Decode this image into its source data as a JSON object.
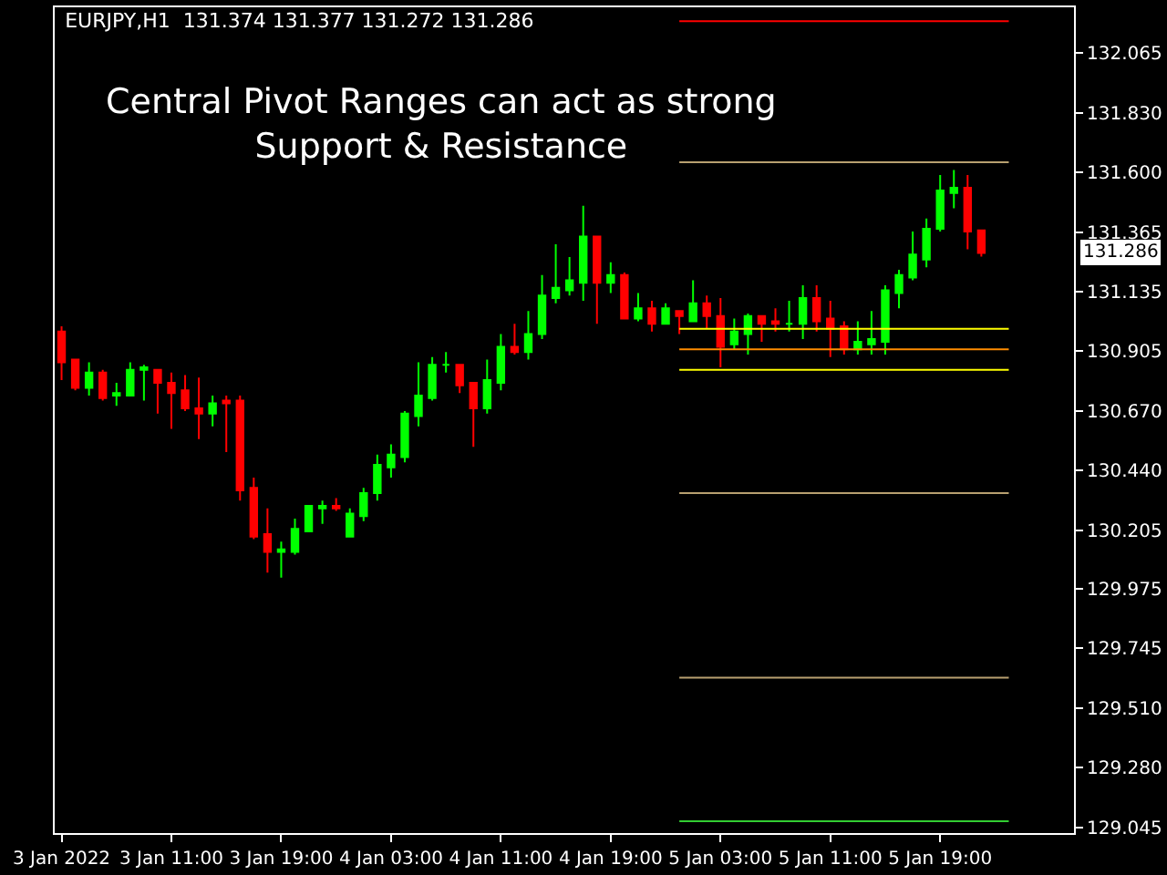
{
  "chart_data": {
    "type": "candlestick",
    "title": "EURJPY,H1  131.374 131.377 131.272 131.286",
    "annotations": [
      "Central Pivot Ranges can act as strong\nSupport & Resistance",
      "131.286"
    ],
    "x": [
      "2022-01-03T03:00",
      "2022-01-03T04:00",
      "2022-01-03T05:00",
      "2022-01-03T06:00",
      "2022-01-03T07:00",
      "2022-01-03T08:00",
      "2022-01-03T09:00",
      "2022-01-03T10:00",
      "2022-01-03T11:00",
      "2022-01-03T12:00",
      "2022-01-03T13:00",
      "2022-01-03T14:00",
      "2022-01-03T15:00",
      "2022-01-03T16:00",
      "2022-01-03T17:00",
      "2022-01-03T18:00",
      "2022-01-03T19:00",
      "2022-01-03T20:00",
      "2022-01-03T21:00",
      "2022-01-03T22:00",
      "2022-01-03T23:00",
      "2022-01-04T00:00",
      "2022-01-04T01:00",
      "2022-01-04T02:00",
      "2022-01-04T03:00",
      "2022-01-04T04:00",
      "2022-01-04T05:00",
      "2022-01-04T06:00",
      "2022-01-04T07:00",
      "2022-01-04T08:00",
      "2022-01-04T09:00",
      "2022-01-04T10:00",
      "2022-01-04T11:00",
      "2022-01-04T12:00",
      "2022-01-04T13:00",
      "2022-01-04T14:00",
      "2022-01-04T15:00",
      "2022-01-04T16:00",
      "2022-01-04T17:00",
      "2022-01-04T18:00",
      "2022-01-04T19:00",
      "2022-01-04T20:00",
      "2022-01-04T21:00",
      "2022-01-04T22:00",
      "2022-01-04T23:00",
      "2022-01-05T00:00",
      "2022-01-05T01:00",
      "2022-01-05T02:00",
      "2022-01-05T03:00",
      "2022-01-05T04:00",
      "2022-01-05T05:00",
      "2022-01-05T06:00",
      "2022-01-05T07:00",
      "2022-01-05T08:00",
      "2022-01-05T09:00",
      "2022-01-05T10:00",
      "2022-01-05T11:00",
      "2022-01-05T12:00",
      "2022-01-05T13:00",
      "2022-01-05T14:00",
      "2022-01-05T15:00",
      "2022-01-05T16:00",
      "2022-01-05T17:00",
      "2022-01-05T18:00",
      "2022-01-05T19:00",
      "2022-01-05T20:00",
      "2022-01-05T21:00",
      "2022-01-05T22:00"
    ],
    "ohlc": [
      [
        130.98,
        131.0,
        130.79,
        130.86
      ],
      [
        130.87,
        130.87,
        130.75,
        130.76
      ],
      [
        130.76,
        130.86,
        130.73,
        130.82
      ],
      [
        130.82,
        130.83,
        130.71,
        130.72
      ],
      [
        130.73,
        130.78,
        130.69,
        130.74
      ],
      [
        130.73,
        130.86,
        130.73,
        130.83
      ],
      [
        130.83,
        130.85,
        130.71,
        130.84
      ],
      [
        130.83,
        130.83,
        130.66,
        130.78
      ],
      [
        130.78,
        130.82,
        130.6,
        130.74
      ],
      [
        130.75,
        130.81,
        130.67,
        130.68
      ],
      [
        130.68,
        130.8,
        130.56,
        130.66
      ],
      [
        130.66,
        130.73,
        130.61,
        130.7
      ],
      [
        130.71,
        130.73,
        130.51,
        130.7
      ],
      [
        130.71,
        130.73,
        130.32,
        130.36
      ],
      [
        130.37,
        130.41,
        130.17,
        130.18
      ],
      [
        130.19,
        130.29,
        130.04,
        130.12
      ],
      [
        130.12,
        130.16,
        130.02,
        130.13
      ],
      [
        130.12,
        130.25,
        130.11,
        130.21
      ],
      [
        130.2,
        130.3,
        130.2,
        130.3
      ],
      [
        130.29,
        130.32,
        130.23,
        130.3
      ],
      [
        130.3,
        130.33,
        130.28,
        130.29
      ],
      [
        130.18,
        130.29,
        130.18,
        130.27
      ],
      [
        130.26,
        130.37,
        130.24,
        130.35
      ],
      [
        130.35,
        130.5,
        130.32,
        130.46
      ],
      [
        130.45,
        130.54,
        130.41,
        130.5
      ],
      [
        130.49,
        130.67,
        130.47,
        130.66
      ],
      [
        130.65,
        130.86,
        130.61,
        130.73
      ],
      [
        130.72,
        130.88,
        130.71,
        130.85
      ],
      [
        130.85,
        130.9,
        130.82,
        130.85
      ],
      [
        130.85,
        130.85,
        130.74,
        130.77
      ],
      [
        130.78,
        130.78,
        130.53,
        130.68
      ],
      [
        130.68,
        130.87,
        130.66,
        130.79
      ],
      [
        130.78,
        130.97,
        130.75,
        130.92
      ],
      [
        130.92,
        131.01,
        130.89,
        130.9
      ],
      [
        130.9,
        131.06,
        130.87,
        130.97
      ],
      [
        130.97,
        131.2,
        130.95,
        131.12
      ],
      [
        131.11,
        131.32,
        131.09,
        131.15
      ],
      [
        131.14,
        131.27,
        131.12,
        131.18
      ],
      [
        131.17,
        131.47,
        131.1,
        131.35
      ],
      [
        131.35,
        131.35,
        131.01,
        131.17
      ],
      [
        131.17,
        131.25,
        131.13,
        131.2
      ],
      [
        131.2,
        131.21,
        131.03,
        131.03
      ],
      [
        131.03,
        131.13,
        131.02,
        131.07
      ],
      [
        131.07,
        131.1,
        130.98,
        131.01
      ],
      [
        131.01,
        131.09,
        131.01,
        131.07
      ],
      [
        131.06,
        131.06,
        130.97,
        131.04
      ],
      [
        131.02,
        131.18,
        131.02,
        131.09
      ],
      [
        131.09,
        131.12,
        130.99,
        131.04
      ],
      [
        131.04,
        131.11,
        130.84,
        130.92
      ],
      [
        130.93,
        131.03,
        130.91,
        130.98
      ],
      [
        130.97,
        131.05,
        130.89,
        131.04
      ],
      [
        131.04,
        131.04,
        130.94,
        131.01
      ],
      [
        131.02,
        131.07,
        130.98,
        131.01
      ],
      [
        131.01,
        131.1,
        130.98,
        131.01
      ],
      [
        131.01,
        131.16,
        130.95,
        131.11
      ],
      [
        131.11,
        131.16,
        130.98,
        131.02
      ],
      [
        131.03,
        131.1,
        130.88,
        130.99
      ],
      [
        131.0,
        131.02,
        130.89,
        130.91
      ],
      [
        130.91,
        131.02,
        130.89,
        130.94
      ],
      [
        130.93,
        131.06,
        130.89,
        130.95
      ],
      [
        130.94,
        131.16,
        130.89,
        131.14
      ],
      [
        131.13,
        131.22,
        131.07,
        131.2
      ],
      [
        131.19,
        131.37,
        131.18,
        131.28
      ],
      [
        131.26,
        131.42,
        131.23,
        131.38
      ],
      [
        131.38,
        131.59,
        131.37,
        131.53
      ],
      [
        131.52,
        131.61,
        131.46,
        131.54
      ],
      [
        131.54,
        131.59,
        131.3,
        131.37
      ],
      [
        131.374,
        131.377,
        131.272,
        131.286
      ]
    ],
    "colors": [
      "#ff0000",
      "#ff0000",
      "#00ff00",
      "#ff0000",
      "#00ff00",
      "#00ff00",
      "#00ff00",
      "#ff0000",
      "#ff0000",
      "#ff0000",
      "#ff0000",
      "#00ff00",
      "#ff0000",
      "#ff0000",
      "#ff0000",
      "#ff0000",
      "#00ff00",
      "#00ff00",
      "#00ff00",
      "#00ff00",
      "#ff0000",
      "#00ff00",
      "#00ff00",
      "#00ff00",
      "#00ff00",
      "#00ff00",
      "#00ff00",
      "#00ff00",
      "#00ff00",
      "#ff0000",
      "#ff0000",
      "#00ff00",
      "#00ff00",
      "#ff0000",
      "#00ff00",
      "#00ff00",
      "#00ff00",
      "#00ff00",
      "#00ff00",
      "#ff0000",
      "#00ff00",
      "#ff0000",
      "#00ff00",
      "#ff0000",
      "#00ff00",
      "#ff0000",
      "#00ff00",
      "#ff0000",
      "#ff0000",
      "#00ff00",
      "#00ff00",
      "#ff0000",
      "#ff0000",
      "#00ff00",
      "#00ff00",
      "#ff0000",
      "#ff0000",
      "#ff0000",
      "#00ff00",
      "#00ff00",
      "#00ff00",
      "#00ff00",
      "#00ff00",
      "#00ff00",
      "#00ff00",
      "#00ff00",
      "#ff0000",
      "#ff0000"
    ],
    "series": [
      {
        "type": "line",
        "color": "#ff0000",
        "x": [
          "2022-01-05T00:00",
          "2022-01-06T00:00"
        ],
        "values": [
          132.19,
          132.19
        ]
      },
      {
        "type": "line",
        "color": "#b8a070",
        "x": [
          "2022-01-05T00:00",
          "2022-01-06T00:00"
        ],
        "values": [
          131.64,
          131.64
        ]
      },
      {
        "type": "line",
        "color": "#ffff00",
        "x": [
          "2022-01-05T00:00",
          "2022-01-06T00:00"
        ],
        "values": [
          130.99,
          130.99
        ]
      },
      {
        "type": "line",
        "color": "#ff8c00",
        "x": [
          "2022-01-05T00:00",
          "2022-01-06T00:00"
        ],
        "values": [
          130.91,
          130.91
        ]
      },
      {
        "type": "line",
        "color": "#ffff00",
        "x": [
          "2022-01-05T00:00",
          "2022-01-06T00:00"
        ],
        "values": [
          130.83,
          130.83
        ]
      },
      {
        "type": "line",
        "color": "#b8a070",
        "x": [
          "2022-01-05T00:00",
          "2022-01-06T00:00"
        ],
        "values": [
          130.35,
          130.35
        ]
      },
      {
        "type": "line",
        "color": "#b8a070",
        "x": [
          "2022-01-05T00:00",
          "2022-01-06T00:00"
        ],
        "values": [
          129.63,
          129.63
        ]
      },
      {
        "type": "line",
        "color": "#32cd32",
        "x": [
          "2022-01-05T00:00",
          "2022-01-06T00:00"
        ],
        "values": [
          129.07,
          129.07
        ]
      }
    ],
    "xlim": [
      "2022-01-03T02:30",
      "2022-01-06T04:45"
    ],
    "xticks": [
      {
        "value": "2022-01-03T03:00",
        "label": "3 Jan 2022"
      },
      {
        "value": "2022-01-03T11:00",
        "label": "3 Jan 11:00"
      },
      {
        "value": "2022-01-03T19:00",
        "label": "3 Jan 19:00"
      },
      {
        "value": "2022-01-04T03:00",
        "label": "4 Jan 03:00"
      },
      {
        "value": "2022-01-04T11:00",
        "label": "4 Jan 11:00"
      },
      {
        "value": "2022-01-04T19:00",
        "label": "4 Jan 19:00"
      },
      {
        "value": "2022-01-05T03:00",
        "label": "5 Jan 03:00"
      },
      {
        "value": "2022-01-05T11:00",
        "label": "5 Jan 11:00"
      },
      {
        "value": "2022-01-05T19:00",
        "label": "5 Jan 19:00"
      }
    ],
    "ylim": [
      129.024,
      132.244
    ],
    "yticks": [
      {
        "value": 132.065,
        "label": "132.065"
      },
      {
        "value": 131.83,
        "label": "131.830"
      },
      {
        "value": 131.6,
        "label": "131.600"
      },
      {
        "value": 131.365,
        "label": "131.365"
      },
      {
        "value": 131.135,
        "label": "131.135"
      },
      {
        "value": 130.905,
        "label": "130.905"
      },
      {
        "value": 130.67,
        "label": "130.670"
      },
      {
        "value": 130.44,
        "label": "130.440"
      },
      {
        "value": 130.205,
        "label": "130.205"
      },
      {
        "value": 129.975,
        "label": "129.975"
      },
      {
        "value": 129.745,
        "label": "129.745"
      },
      {
        "value": 129.51,
        "label": "129.510"
      },
      {
        "value": 129.28,
        "label": "129.280"
      },
      {
        "value": 129.045,
        "label": "129.045"
      }
    ],
    "grid": false
  }
}
